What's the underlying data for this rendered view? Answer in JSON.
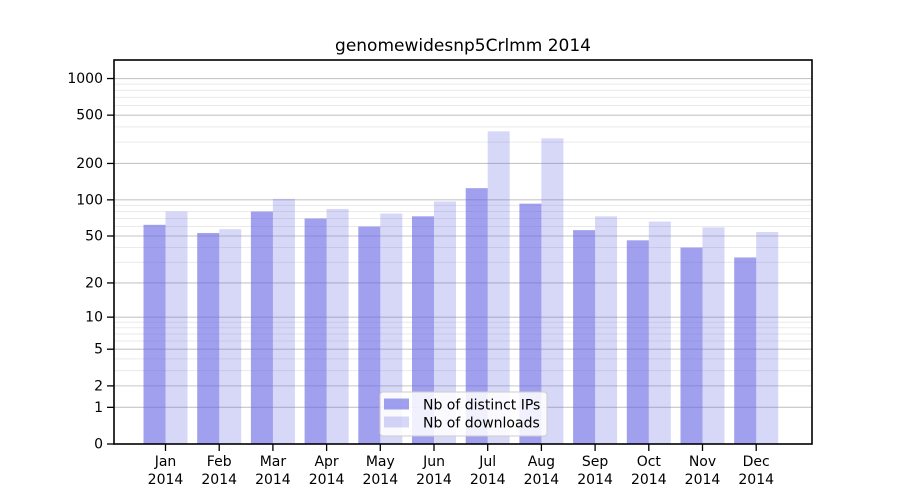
{
  "title": "genomewidesnp5Crlmm 2014",
  "colors": {
    "bar_base": "#6666e3",
    "ips_fill": "rgba(102,102,227,0.62)",
    "downloads_fill": "rgba(102,102,227,0.26)",
    "grid_major": "#c6c6c6",
    "grid_minor": "#eaeaea",
    "axis": "#000000",
    "legend_border": "#cccccc",
    "background": "#ffffff"
  },
  "legend": {
    "items": [
      {
        "label": "Nb of distinct IPs"
      },
      {
        "label": "Nb of downloads"
      }
    ]
  },
  "chart_data": {
    "type": "bar",
    "title": "genomewidesnp5Crlmm 2014",
    "categories": [
      "Jan",
      "Feb",
      "Mar",
      "Apr",
      "May",
      "Jun",
      "Jul",
      "Aug",
      "Sep",
      "Oct",
      "Nov",
      "Dec"
    ],
    "category_year": "2014",
    "series": [
      {
        "name": "Nb of distinct IPs",
        "color": "rgba(102,102,227,0.62)",
        "values": [
          62,
          53,
          80,
          70,
          60,
          73,
          125,
          93,
          56,
          46,
          40,
          33
        ]
      },
      {
        "name": "Nb of downloads",
        "color": "rgba(102,102,227,0.26)",
        "values": [
          80,
          57,
          102,
          84,
          77,
          97,
          368,
          322,
          73,
          66,
          59,
          54
        ]
      }
    ],
    "xlabel": "",
    "ylabel": "",
    "yscale": "log1p",
    "yticks": [
      0,
      1,
      2,
      5,
      10,
      20,
      50,
      100,
      200,
      500,
      1000
    ],
    "ytick_labels": [
      "0",
      "1",
      "2",
      "5",
      "10",
      "20",
      "50",
      "100",
      "200",
      "500",
      "1000"
    ],
    "minor_gridlines": [
      3,
      4,
      6,
      7,
      8,
      9,
      30,
      40,
      60,
      70,
      80,
      90,
      300,
      400,
      600,
      700,
      800,
      900
    ],
    "ylim": [
      0,
      1420
    ],
    "grid": true,
    "legend_position": "bottom-center-inside"
  }
}
